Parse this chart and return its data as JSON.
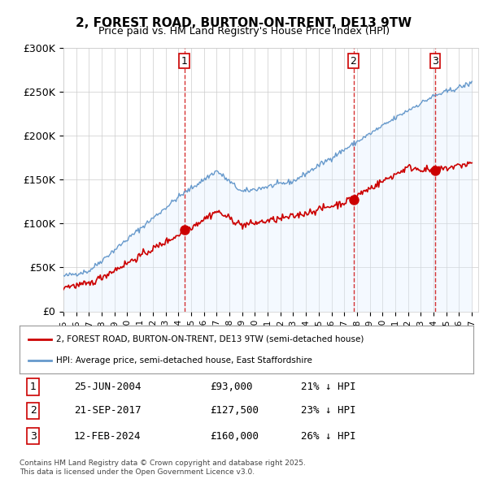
{
  "title": "2, FOREST ROAD, BURTON-ON-TRENT, DE13 9TW",
  "subtitle": "Price paid vs. HM Land Registry's House Price Index (HPI)",
  "ylabel_ticks": [
    "£0",
    "£50K",
    "£100K",
    "£150K",
    "£200K",
    "£250K",
    "£300K"
  ],
  "ylim": [
    0,
    300000
  ],
  "xlim_start": 1995.0,
  "xlim_end": 2027.5,
  "price_color": "#cc0000",
  "hpi_color": "#6699cc",
  "hpi_fill_color": "#ddeeff",
  "sale_line_color": "#cc0000",
  "sale_marker_color": "#cc0000",
  "sales": [
    {
      "num": 1,
      "year": 2004.48,
      "price": 93000,
      "label": "25-JUN-2004",
      "price_str": "£93,000",
      "hpi_diff": "21% ↓ HPI"
    },
    {
      "num": 2,
      "year": 2017.72,
      "price": 127500,
      "label": "21-SEP-2017",
      "price_str": "£127,500",
      "hpi_diff": "23% ↓ HPI"
    },
    {
      "num": 3,
      "year": 2024.12,
      "price": 160000,
      "label": "12-FEB-2024",
      "price_str": "£160,000",
      "hpi_diff": "26% ↓ HPI"
    }
  ],
  "legend_label_property": "2, FOREST ROAD, BURTON-ON-TRENT, DE13 9TW (semi-detached house)",
  "legend_label_hpi": "HPI: Average price, semi-detached house, East Staffordshire",
  "footnote": "Contains HM Land Registry data © Crown copyright and database right 2025.\nThis data is licensed under the Open Government Licence v3.0.",
  "background_color": "#ffffff",
  "plot_bg_color": "#ffffff",
  "grid_color": "#cccccc"
}
